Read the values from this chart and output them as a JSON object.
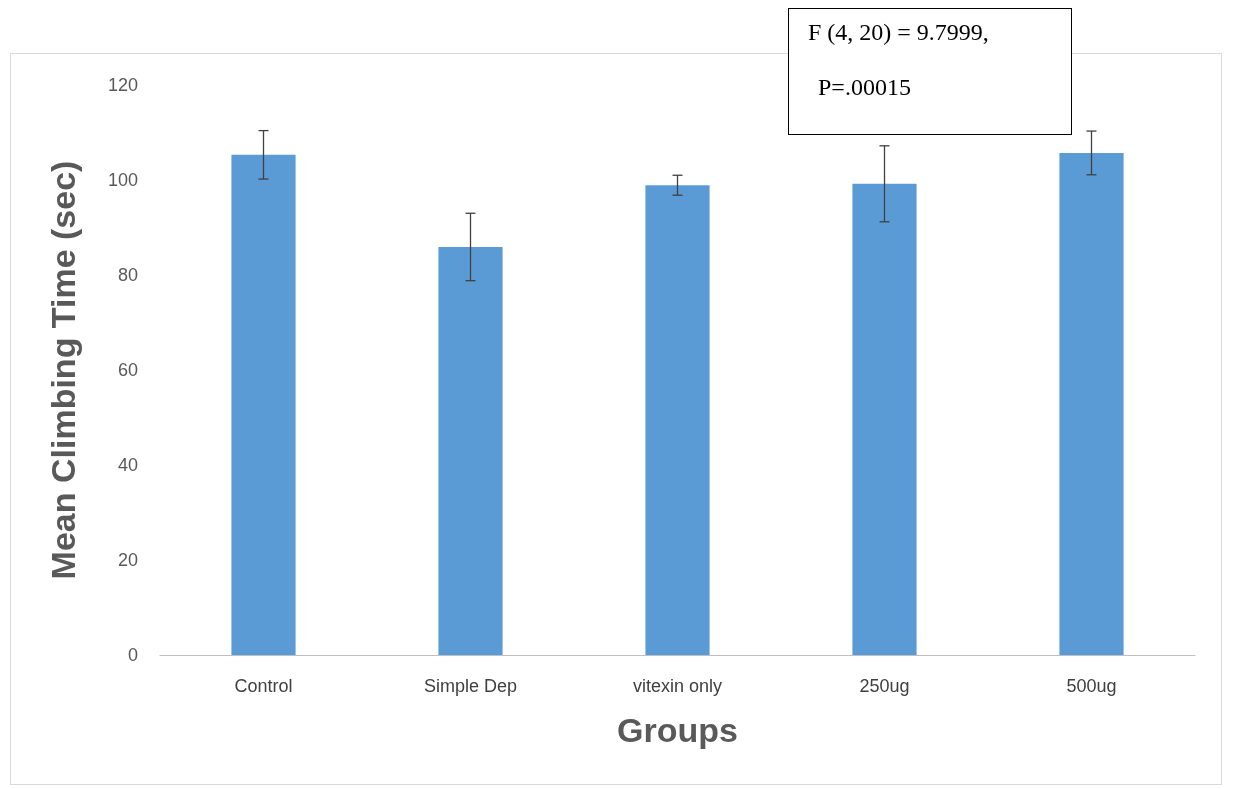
{
  "chart_data": {
    "type": "bar",
    "xlabel": "Groups",
    "ylabel": "Mean Climbing Time (sec)",
    "categories": [
      "Control",
      "Simple Dep",
      "vitexin only",
      "250ug",
      "500ug"
    ],
    "values": [
      105.3,
      85.9,
      98.9,
      99.2,
      105.7
    ],
    "errors": [
      5.1,
      7.1,
      2.1,
      8,
      4.6
    ],
    "color": "#5b9bd5",
    "ylim": [
      0,
      120
    ],
    "yticks": [
      0,
      20,
      40,
      60,
      80,
      100,
      120
    ],
    "grid": false,
    "annotations": [
      "F (4, 20) = 9.7999,",
      "P=.00015"
    ]
  }
}
